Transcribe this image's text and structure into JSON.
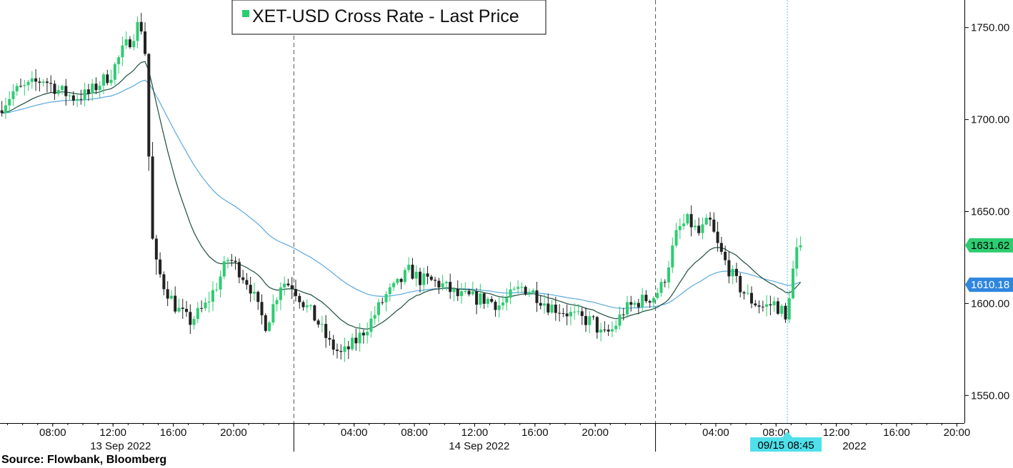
{
  "source_label": "Source: Flowbank, Bloomberg",
  "colors": {
    "up": "#2ecc71",
    "down": "#222222",
    "ma_fast": "#1b4d3e",
    "ma_slow": "#5aa8dd",
    "last_price_tag": "#2ecc71",
    "ma_tag": "#2f86de",
    "cursor_tag": "#4fe0ea",
    "legend_square": "#2ecc71"
  },
  "chart_data": {
    "type": "candlestick",
    "title": "XET-USD Cross Rate - Last Price",
    "y_axis": {
      "position": "right",
      "range": [
        1535,
        1765
      ],
      "ticks": [
        1550,
        1600,
        1650,
        1700,
        1750
      ],
      "tick_labels": [
        "1550.00",
        "1600.00",
        "1650.00",
        "1700.00",
        "1750.00"
      ]
    },
    "x_axis": {
      "start_hour": 4.5,
      "end_hour": 68.5,
      "time_ticks": [
        {
          "hour": 8,
          "label": "08:00"
        },
        {
          "hour": 12,
          "label": "12:00"
        },
        {
          "hour": 16,
          "label": "16:00"
        },
        {
          "hour": 20,
          "label": "20:00"
        },
        {
          "hour": 28,
          "label": "04:00"
        },
        {
          "hour": 32,
          "label": "08:00"
        },
        {
          "hour": 36,
          "label": "12:00"
        },
        {
          "hour": 40,
          "label": "16:00"
        },
        {
          "hour": 44,
          "label": "20:00"
        },
        {
          "hour": 52,
          "label": "04:00"
        },
        {
          "hour": 56,
          "label": "08:00"
        },
        {
          "hour": 60,
          "label": "12:00"
        },
        {
          "hour": 64,
          "label": "16:00"
        },
        {
          "hour": 68,
          "label": "20:00"
        }
      ],
      "day_separators": [
        24,
        48
      ],
      "day_labels": [
        {
          "hour": 12.5,
          "label": "13 Sep 2022"
        },
        {
          "hour": 36.3,
          "label": "14 Sep 2022"
        },
        {
          "hour": 61.2,
          "label": "2022"
        }
      ]
    },
    "cursor": {
      "hour": 56.75,
      "label": "09/15 08:45"
    },
    "last_price": {
      "value": 1631.62,
      "label": "1631.62"
    },
    "ma_value": {
      "value": 1610.18,
      "label": "1610.18"
    },
    "anchor_points": [
      [
        4.5,
        1705
      ],
      [
        5.5,
        1715
      ],
      [
        6.5,
        1718
      ],
      [
        7.5,
        1722
      ],
      [
        8.5,
        1716
      ],
      [
        9.5,
        1712
      ],
      [
        10.5,
        1714
      ],
      [
        11,
        1718
      ],
      [
        12,
        1725
      ],
      [
        12.8,
        1738
      ],
      [
        13.4,
        1745
      ],
      [
        13.8,
        1752
      ],
      [
        14.2,
        1748
      ],
      [
        14.5,
        1680
      ],
      [
        14.8,
        1625
      ],
      [
        15.5,
        1610
      ],
      [
        16.3,
        1598
      ],
      [
        17.2,
        1590
      ],
      [
        18.2,
        1598
      ],
      [
        19,
        1610
      ],
      [
        19.8,
        1625
      ],
      [
        20.5,
        1618
      ],
      [
        21.2,
        1610
      ],
      [
        21.8,
        1596
      ],
      [
        22.3,
        1588
      ],
      [
        22.8,
        1600
      ],
      [
        23.3,
        1612
      ],
      [
        24,
        1610
      ],
      [
        24.8,
        1600
      ],
      [
        25.7,
        1590
      ],
      [
        26.5,
        1578
      ],
      [
        27.3,
        1572
      ],
      [
        28.3,
        1580
      ],
      [
        29.2,
        1590
      ],
      [
        30.2,
        1604
      ],
      [
        31,
        1610
      ],
      [
        31.8,
        1618
      ],
      [
        32.5,
        1613
      ],
      [
        33.3,
        1612
      ],
      [
        34,
        1610
      ],
      [
        35,
        1604
      ],
      [
        36,
        1603
      ],
      [
        37,
        1602
      ],
      [
        37.8,
        1599
      ],
      [
        38.5,
        1604
      ],
      [
        39.3,
        1609
      ],
      [
        40,
        1606
      ],
      [
        41,
        1599
      ],
      [
        42,
        1596
      ],
      [
        43,
        1592
      ],
      [
        44,
        1590
      ],
      [
        44.6,
        1582
      ],
      [
        45.3,
        1586
      ],
      [
        46,
        1596
      ],
      [
        47,
        1601
      ],
      [
        48,
        1604
      ],
      [
        48.6,
        1610
      ],
      [
        49.1,
        1625
      ],
      [
        49.6,
        1640
      ],
      [
        50.3,
        1645
      ],
      [
        51,
        1638
      ],
      [
        51.7,
        1645
      ],
      [
        52.3,
        1630
      ],
      [
        52.9,
        1620
      ],
      [
        53.6,
        1610
      ],
      [
        54.4,
        1602
      ],
      [
        55.3,
        1598
      ],
      [
        56,
        1600
      ],
      [
        56.5,
        1596
      ],
      [
        56.75,
        1590
      ],
      [
        57.1,
        1612
      ],
      [
        57.6,
        1632
      ]
    ],
    "series": [
      {
        "name": "Moving average (short)",
        "color": "#1b4d3e"
      },
      {
        "name": "Moving average (long)",
        "color": "#5aa8dd"
      }
    ]
  }
}
